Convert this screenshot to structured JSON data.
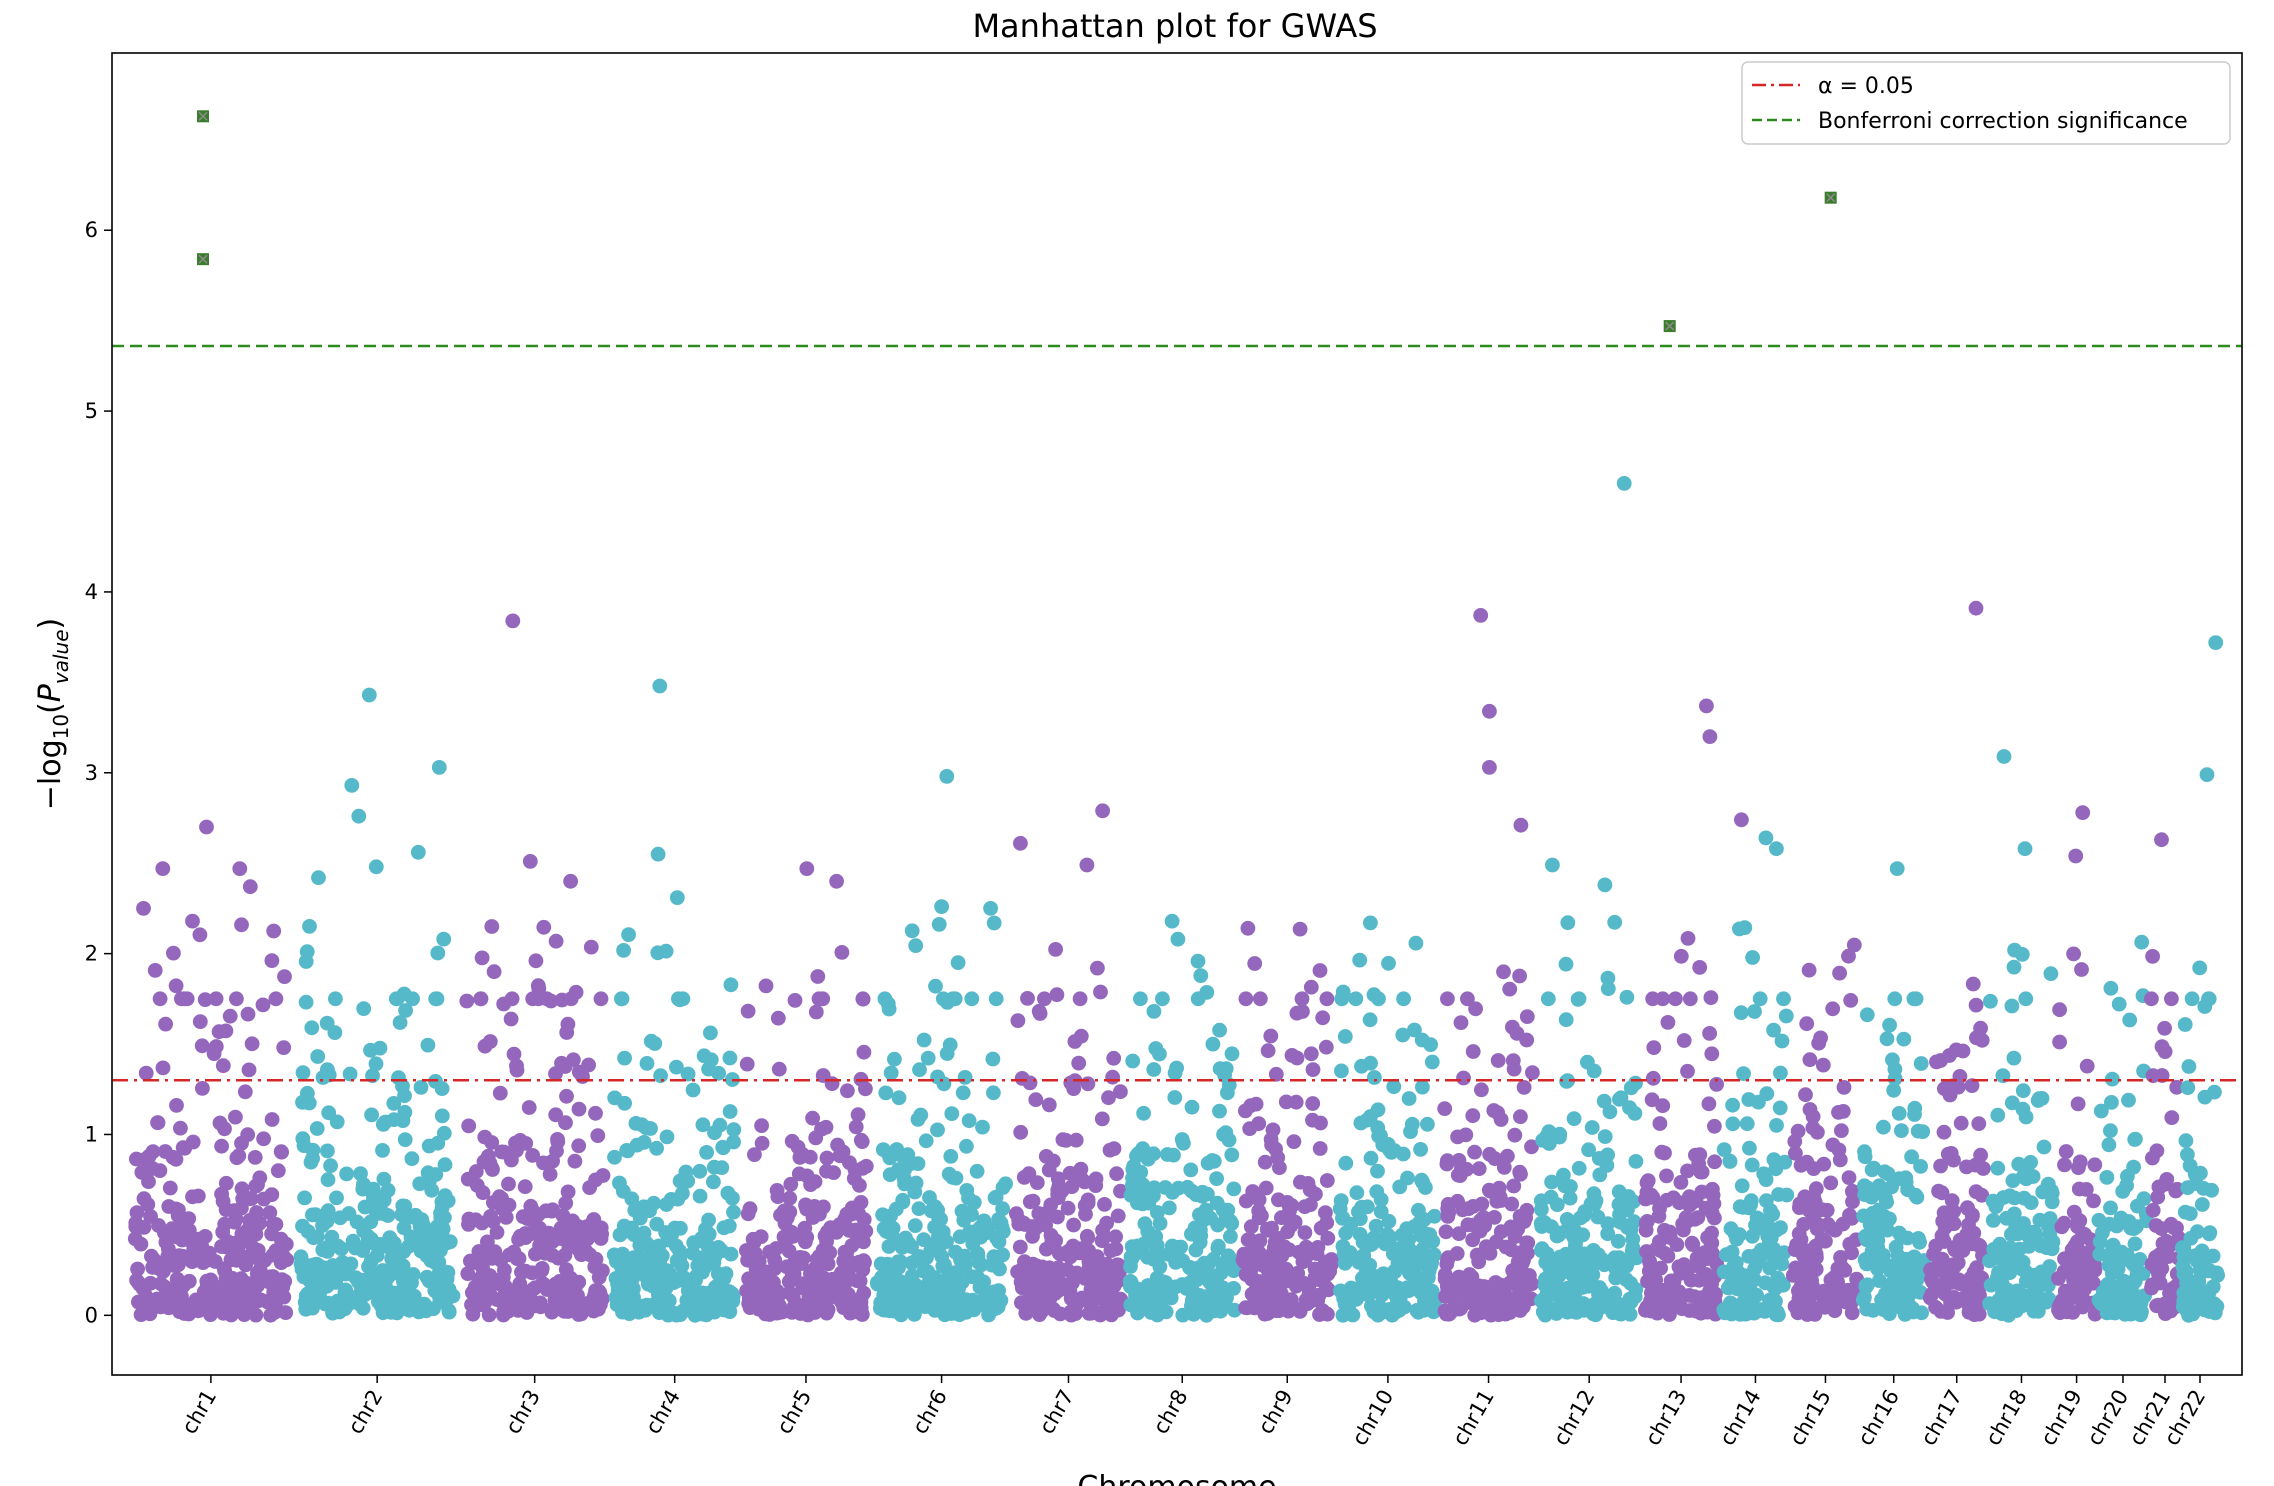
{
  "chart_data": {
    "type": "scatter",
    "title": "Manhattan plot for GWAS",
    "xlabel": "Chromosome",
    "ylabel": "−log₁₀(P_value)",
    "ylim": [
      -0.33,
      6.98
    ],
    "yticks": [
      0,
      1,
      2,
      3,
      4,
      5,
      6
    ],
    "grid": false,
    "legend_position": "top-right",
    "series_colors": [
      "#9467bd",
      "#56b9c9"
    ],
    "significant_color": "#3a7d2c",
    "chromosomes": [
      {
        "label": "chr1",
        "start": 0,
        "end": 0.95
      },
      {
        "label": "chr2",
        "start": 0.95,
        "end": 1.9
      },
      {
        "label": "chr3",
        "start": 1.9,
        "end": 2.75
      },
      {
        "label": "chr4",
        "start": 2.75,
        "end": 3.5
      },
      {
        "label": "chr5",
        "start": 3.5,
        "end": 4.25
      },
      {
        "label": "chr6",
        "start": 4.25,
        "end": 5.05
      },
      {
        "label": "chr7",
        "start": 5.05,
        "end": 5.7
      },
      {
        "label": "chr8",
        "start": 5.7,
        "end": 6.35
      },
      {
        "label": "chr9",
        "start": 6.35,
        "end": 6.9
      },
      {
        "label": "chr10",
        "start": 6.9,
        "end": 7.5
      },
      {
        "label": "chr11",
        "start": 7.5,
        "end": 8.05
      },
      {
        "label": "chr12",
        "start": 8.05,
        "end": 8.65
      },
      {
        "label": "chr13",
        "start": 8.65,
        "end": 9.1
      },
      {
        "label": "chr14",
        "start": 9.1,
        "end": 9.5
      },
      {
        "label": "chr15",
        "start": 9.5,
        "end": 9.9
      },
      {
        "label": "chr16",
        "start": 9.9,
        "end": 10.28
      },
      {
        "label": "chr17",
        "start": 10.28,
        "end": 10.62
      },
      {
        "label": "chr18",
        "start": 10.62,
        "end": 11.02
      },
      {
        "label": "chr19",
        "start": 11.02,
        "end": 11.25
      },
      {
        "label": "chr20",
        "start": 11.25,
        "end": 11.55
      },
      {
        "label": "chr21",
        "start": 11.55,
        "end": 11.73
      },
      {
        "label": "chr22",
        "start": 11.73,
        "end": 11.95
      }
    ],
    "xlim": [
      -0.09,
      12.08
    ],
    "thresholds": [
      {
        "name": "α = 0.05",
        "value": 1.3,
        "color": "#d62728",
        "style": "dashdot"
      },
      {
        "name": "Bonferroni correction significance",
        "value": 5.36,
        "color": "#2c8a1f",
        "style": "dashed"
      }
    ],
    "significant_points": [
      {
        "x": 0.43,
        "y": 6.63
      },
      {
        "x": 0.43,
        "y": 5.84
      },
      {
        "x": 8.81,
        "y": 5.47
      },
      {
        "x": 9.73,
        "y": 6.18
      }
    ],
    "notable_points": [
      {
        "chr": "chr1",
        "x": 0.45,
        "y": 2.7
      },
      {
        "chr": "chr1",
        "x": 0.64,
        "y": 2.47
      },
      {
        "chr": "chr1",
        "x": 0.2,
        "y": 2.47
      },
      {
        "chr": "chr1",
        "x": 0.7,
        "y": 2.37
      },
      {
        "chr": "chr1",
        "x": 0.09,
        "y": 2.25
      },
      {
        "chr": "chr1",
        "x": 0.37,
        "y": 2.18
      },
      {
        "chr": "chr2",
        "x": 1.38,
        "y": 3.43
      },
      {
        "chr": "chr2",
        "x": 1.78,
        "y": 3.03
      },
      {
        "chr": "chr2",
        "x": 1.28,
        "y": 2.93
      },
      {
        "chr": "chr2",
        "x": 1.32,
        "y": 2.76
      },
      {
        "chr": "chr2",
        "x": 1.66,
        "y": 2.56
      },
      {
        "chr": "chr2",
        "x": 1.42,
        "y": 2.48
      },
      {
        "chr": "chr2",
        "x": 1.09,
        "y": 2.42
      },
      {
        "chr": "chr3",
        "x": 2.2,
        "y": 3.84
      },
      {
        "chr": "chr3",
        "x": 2.3,
        "y": 2.51
      },
      {
        "chr": "chr3",
        "x": 2.53,
        "y": 2.4
      },
      {
        "chr": "chr3",
        "x": 2.08,
        "y": 2.15
      },
      {
        "chr": "chr4",
        "x": 3.04,
        "y": 3.48
      },
      {
        "chr": "chr4",
        "x": 3.03,
        "y": 2.55
      },
      {
        "chr": "chr4",
        "x": 3.14,
        "y": 2.31
      },
      {
        "chr": "chr5",
        "x": 3.88,
        "y": 2.47
      },
      {
        "chr": "chr5",
        "x": 4.05,
        "y": 2.4
      },
      {
        "chr": "chr6",
        "x": 4.68,
        "y": 2.98
      },
      {
        "chr": "chr6",
        "x": 4.65,
        "y": 2.26
      },
      {
        "chr": "chr6",
        "x": 4.93,
        "y": 2.25
      },
      {
        "chr": "chr7",
        "x": 5.1,
        "y": 2.61
      },
      {
        "chr": "chr7",
        "x": 5.57,
        "y": 2.79
      },
      {
        "chr": "chr7",
        "x": 5.48,
        "y": 2.49
      },
      {
        "chr": "chr8",
        "x": 6.0,
        "y": 2.08
      },
      {
        "chr": "chr9",
        "x": 6.4,
        "y": 2.14
      },
      {
        "chr": "chr10",
        "x": 7.1,
        "y": 2.17
      },
      {
        "chr": "chr11",
        "x": 7.73,
        "y": 3.87
      },
      {
        "chr": "chr11",
        "x": 7.78,
        "y": 3.34
      },
      {
        "chr": "chr11",
        "x": 7.78,
        "y": 3.03
      },
      {
        "chr": "chr11",
        "x": 7.96,
        "y": 2.71
      },
      {
        "chr": "chr12",
        "x": 8.55,
        "y": 4.6
      },
      {
        "chr": "chr12",
        "x": 8.14,
        "y": 2.49
      },
      {
        "chr": "chr12",
        "x": 8.44,
        "y": 2.38
      },
      {
        "chr": "chr13",
        "x": 9.02,
        "y": 3.37
      },
      {
        "chr": "chr13",
        "x": 9.04,
        "y": 3.2
      },
      {
        "chr": "chr13",
        "x": 9.22,
        "y": 2.74
      },
      {
        "chr": "chr14",
        "x": 9.36,
        "y": 2.64
      },
      {
        "chr": "chr14",
        "x": 9.42,
        "y": 2.58
      },
      {
        "chr": "chr16",
        "x": 10.11,
        "y": 2.47
      },
      {
        "chr": "chr17",
        "x": 10.56,
        "y": 3.91
      },
      {
        "chr": "chr18",
        "x": 10.72,
        "y": 3.09
      },
      {
        "chr": "chr18",
        "x": 10.84,
        "y": 2.58
      },
      {
        "chr": "chr19",
        "x": 11.17,
        "y": 2.78
      },
      {
        "chr": "chr19",
        "x": 11.13,
        "y": 2.54
      },
      {
        "chr": "chr21",
        "x": 11.62,
        "y": 2.63
      },
      {
        "chr": "chr22",
        "x": 11.93,
        "y": 3.72
      },
      {
        "chr": "chr22",
        "x": 11.88,
        "y": 2.99
      }
    ]
  }
}
